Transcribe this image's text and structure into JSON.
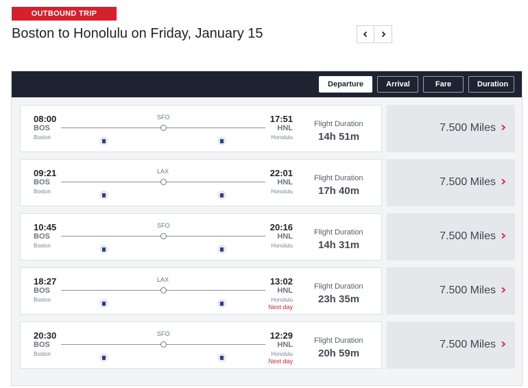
{
  "trip": {
    "badge": "OUTBOUND TRIP",
    "title": "Boston to Honolulu on Friday, January 15"
  },
  "sort": {
    "buttons": [
      "Departure",
      "Arrival",
      "Fare",
      "Duration"
    ],
    "active": "Departure"
  },
  "colors": {
    "badge_red": "#d5202e",
    "sort_bar": "#1d2330",
    "next_day": "#d5202e"
  },
  "flights": [
    {
      "dep_time": "08:00",
      "dep_code": "BOS",
      "dep_city": "Boston",
      "stop": "SFO",
      "arr_time": "17:51",
      "arr_code": "HNL",
      "arr_city": "Honolulu",
      "next_day": "",
      "duration_label": "Flight Duration",
      "duration": "14h 51m",
      "fare": "7.500 Miles"
    },
    {
      "dep_time": "09:21",
      "dep_code": "BOS",
      "dep_city": "Boston",
      "stop": "LAX",
      "arr_time": "22:01",
      "arr_code": "HNL",
      "arr_city": "Honolulu",
      "next_day": "",
      "duration_label": "Flight Duration",
      "duration": "17h 40m",
      "fare": "7.500 Miles"
    },
    {
      "dep_time": "10:45",
      "dep_code": "BOS",
      "dep_city": "Boston",
      "stop": "SFO",
      "arr_time": "20:16",
      "arr_code": "HNL",
      "arr_city": "Honolulu",
      "next_day": "",
      "duration_label": "Flight Duration",
      "duration": "14h 31m",
      "fare": "7.500 Miles"
    },
    {
      "dep_time": "18:27",
      "dep_code": "BOS",
      "dep_city": "Boston",
      "stop": "LAX",
      "arr_time": "13:02",
      "arr_code": "HNL",
      "arr_city": "Honolulu",
      "next_day": "Next day",
      "duration_label": "Flight Duration",
      "duration": "23h 35m",
      "fare": "7.500 Miles"
    },
    {
      "dep_time": "20:30",
      "dep_code": "BOS",
      "dep_city": "Boston",
      "stop": "SFO",
      "arr_time": "12:29",
      "arr_code": "HNL",
      "arr_city": "Honolulu",
      "next_day": "Next day",
      "duration_label": "Flight Duration",
      "duration": "20h 59m",
      "fare": "7.500 Miles"
    }
  ],
  "icons": {
    "prev": "chevron-left-icon",
    "next": "chevron-right-icon",
    "airline": "airline-logo-icon",
    "fare": "chevron-right-icon"
  }
}
